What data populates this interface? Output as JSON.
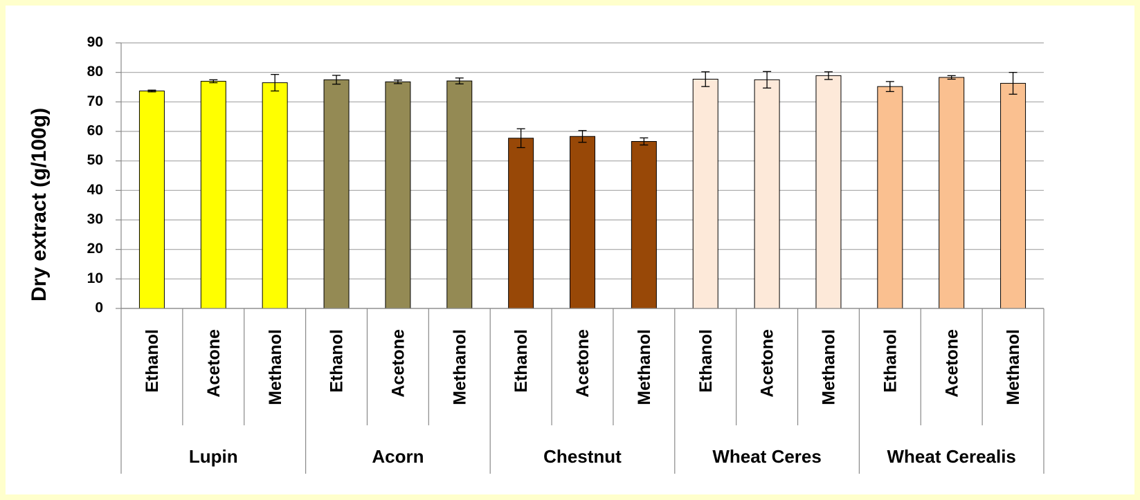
{
  "chart_data": {
    "type": "bar",
    "y_label": "Dry extract   (g/100g)",
    "ylim": [
      0,
      90
    ],
    "yticks": [
      0,
      10,
      20,
      30,
      40,
      50,
      60,
      70,
      80,
      90
    ],
    "grid": true,
    "groups": [
      {
        "name": "Lupin",
        "color": "#ffff00",
        "categories": [
          "Ethanol",
          "Acetone",
          "Methanol"
        ],
        "values": [
          73.7,
          77.0,
          76.5
        ],
        "errors": [
          0.3,
          0.5,
          2.8
        ]
      },
      {
        "name": "Acorn",
        "color": "#948a54",
        "categories": [
          "Ethanol",
          "Acetone",
          "Methanol"
        ],
        "values": [
          77.5,
          76.8,
          77.1
        ],
        "errors": [
          1.5,
          0.6,
          1.0
        ]
      },
      {
        "name": "Chestnut",
        "color": "#984807",
        "categories": [
          "Ethanol",
          "Acetone",
          "Methanol"
        ],
        "values": [
          57.7,
          58.3,
          56.6
        ],
        "errors": [
          3.2,
          2.0,
          1.2
        ]
      },
      {
        "name": "Wheat Ceres",
        "color": "#fde9d9",
        "categories": [
          "Ethanol",
          "Acetone",
          "Methanol"
        ],
        "values": [
          77.7,
          77.5,
          78.9
        ],
        "errors": [
          2.5,
          2.8,
          1.3
        ]
      },
      {
        "name": "Wheat Cerealis",
        "color": "#fac090",
        "categories": [
          "Ethanol",
          "Acetone",
          "Methanol"
        ],
        "values": [
          75.2,
          78.3,
          76.3
        ],
        "errors": [
          1.7,
          0.6,
          3.7
        ]
      }
    ]
  }
}
